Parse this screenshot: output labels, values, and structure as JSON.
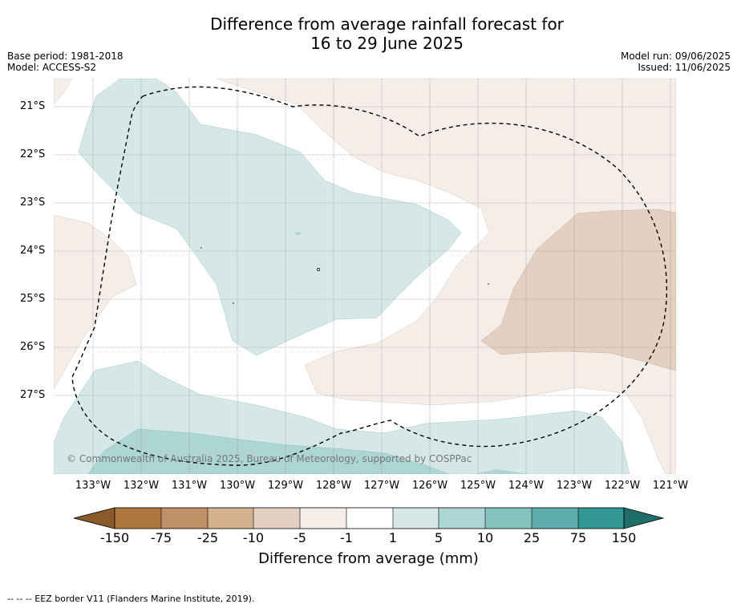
{
  "header": {
    "title_line1": "Difference from average rainfall forecast for",
    "title_line2": "16 to 29 June 2025",
    "base_period": "Base period: 1981-2018",
    "model": "Model: ACCESS-S2",
    "model_run": "Model run: 09/06/2025",
    "issued": "Issued: 11/06/2025"
  },
  "map": {
    "lat_labels": [
      "21°S",
      "22°S",
      "23°S",
      "24°S",
      "25°S",
      "26°S",
      "27°S"
    ],
    "lon_labels": [
      "133°W",
      "132°W",
      "131°W",
      "130°W",
      "129°W",
      "128°W",
      "127°W",
      "126°W",
      "125°W",
      "124°W",
      "123°W",
      "122°W",
      "121°W"
    ],
    "copyright": "© Commonwealth of Australia 2025, Bureau of Meteorology, supported by COSPPac",
    "colors": {
      "dry_light": "#f4ede8",
      "dry_medium": "#e3d0c0",
      "wet_light": "#d5e8e7",
      "wet_medium": "#acd5d3",
      "eez_line": "#000000"
    }
  },
  "colorbar": {
    "tick_labels": [
      "-150",
      "-75",
      "-25",
      "-10",
      "-5",
      "-1",
      "1",
      "5",
      "10",
      "25",
      "75",
      "150"
    ],
    "colors": [
      "#8b5a2b",
      "#ad7840",
      "#c09068",
      "#d3b08e",
      "#e3d0c0",
      "#f4ede8",
      "#ffffff",
      "#d5e8e7",
      "#acd5d3",
      "#85c3c1",
      "#5cadab",
      "#329894",
      "#1e6e6a"
    ],
    "title": "Difference from average (mm)"
  },
  "footnote": "--  --  -- EEZ border V11 (Flanders Marine Institute, 2019)."
}
